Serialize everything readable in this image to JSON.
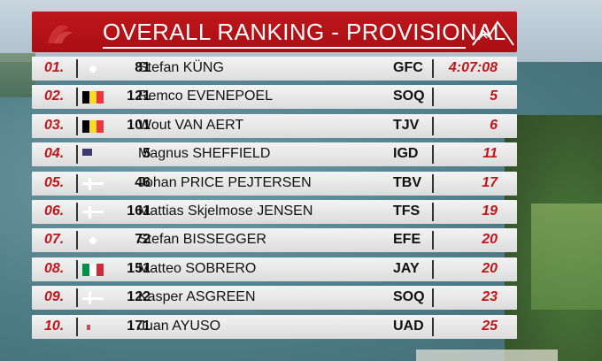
{
  "header": {
    "title": "OVERALL RANKING - PROVISIONAL"
  },
  "colors": {
    "accent": "#c0161b",
    "row_bg": "#e6e6e6",
    "text": "#111111"
  },
  "rankings": [
    {
      "pos": "01.",
      "flag": "switzerland-flag-icon",
      "flag_class": "flag-sui",
      "number": "81",
      "name": "Stefan KÜNG",
      "team": "GFC",
      "time": "4:07:08"
    },
    {
      "pos": "02.",
      "flag": "belgium-flag-icon",
      "flag_class": "flag-bel",
      "number": "121",
      "name": "Remco EVENEPOEL",
      "team": "SOQ",
      "time": "5"
    },
    {
      "pos": "03.",
      "flag": "belgium-flag-icon",
      "flag_class": "flag-bel",
      "number": "101",
      "name": "Wout VAN AERT",
      "team": "TJV",
      "time": "6"
    },
    {
      "pos": "04.",
      "flag": "usa-flag-icon",
      "flag_class": "flag-usa",
      "number": "5",
      "name": "Magnus SHEFFIELD",
      "team": "IGD",
      "time": "11"
    },
    {
      "pos": "05.",
      "flag": "denmark-flag-icon",
      "flag_class": "flag-den",
      "number": "46",
      "name": "Johan PRICE PEJTERSEN",
      "team": "TBV",
      "time": "17"
    },
    {
      "pos": "06.",
      "flag": "denmark-flag-icon",
      "flag_class": "flag-den",
      "number": "161",
      "name": "Mattias Skjelmose JENSEN",
      "team": "TFS",
      "time": "19"
    },
    {
      "pos": "07.",
      "flag": "switzerland-flag-icon",
      "flag_class": "flag-sui",
      "number": "72",
      "name": "Stefan BISSEGGER",
      "team": "EFE",
      "time": "20"
    },
    {
      "pos": "08.",
      "flag": "italy-flag-icon",
      "flag_class": "flag-ita",
      "number": "151",
      "name": "Matteo SOBRERO",
      "team": "JAY",
      "time": "20"
    },
    {
      "pos": "09.",
      "flag": "denmark-flag-icon",
      "flag_class": "flag-den",
      "number": "122",
      "name": "Kasper ASGREEN",
      "team": "SOQ",
      "time": "23"
    },
    {
      "pos": "10.",
      "flag": "spain-flag-icon",
      "flag_class": "flag-esp",
      "number": "171",
      "name": "Juan AYUSO",
      "team": "UAD",
      "time": "25"
    }
  ]
}
